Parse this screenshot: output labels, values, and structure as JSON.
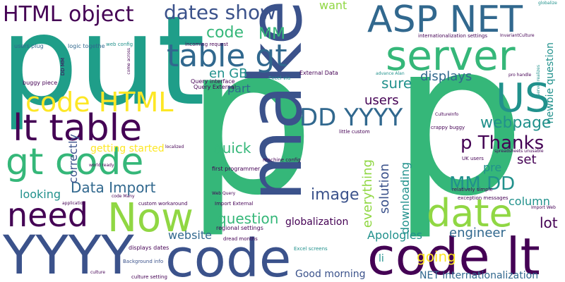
{
  "palette": {
    "background": "#ffffff",
    "dark_purple": "#440154",
    "indigo": "#3b528b",
    "steel_blue": "#31688e",
    "teal": "#21918c",
    "green": "#35b779",
    "lime": "#90d743",
    "yellow": "#fde725"
  },
  "words": [
    "put",
    "p",
    "p",
    "make",
    "code",
    "YYYY",
    "code lt",
    "server",
    "ASP NET",
    "date",
    "Now",
    "need",
    "gt code",
    "lt table",
    "code HTML",
    "table gt",
    "HTML object",
    "dates show",
    "US",
    "DD YYYY",
    "p Thanks",
    "webpage",
    "MM DD",
    "Data Import",
    "quick",
    "question",
    "image",
    "code",
    "MM",
    "en GB",
    "part",
    "sure",
    "users",
    "displays",
    "pre",
    "set",
    "column",
    "lot",
    "Apologies",
    "engineer",
    "solution",
    "everything",
    "downloading",
    "going",
    "correctly",
    "getting started",
    "looking",
    "website",
    "globalization",
    "Good morning",
    "NET internationalization",
    "newbie question",
    "want",
    "li",
    "users plug",
    "logic togethe",
    "web config",
    "incoming request",
    "Query interface",
    "Query External",
    "External Data",
    "Excel via",
    "advance Alan",
    "buggy piece",
    "first programmer",
    "machine config",
    "Import External",
    "regional settings",
    "Excel screens",
    "culture setting",
    "Background info",
    "displays dates",
    "custom workaround",
    "code Many",
    "Web Query",
    "dread months",
    "little custom",
    "UK users",
    "spreadsheets unusable",
    "relatively simple",
    "exception messages",
    "Import Web",
    "crappy buggy",
    "internationalization settings",
    "InvariantCulture",
    "globalize",
    "pro handle",
    "server realizes",
    "CultureInfo",
    "DD MM",
    "come across",
    "localized",
    "world ready",
    "application",
    "culture"
  ]
}
